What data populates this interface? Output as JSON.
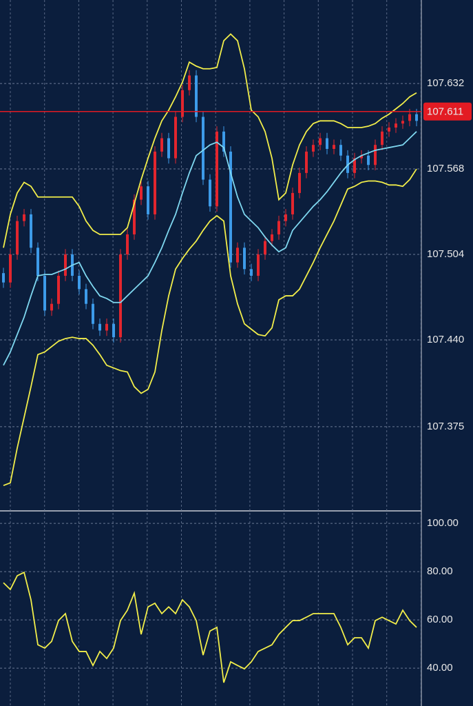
{
  "chart_data": [
    {
      "type": "candlestick",
      "open": [
        107.49,
        107.483,
        107.504,
        107.529,
        107.534,
        107.509,
        107.488,
        107.462,
        107.467,
        107.488,
        107.504,
        107.488,
        107.478,
        107.467,
        107.452,
        107.447,
        107.452,
        107.442,
        107.504,
        107.519,
        107.545,
        107.555,
        107.534,
        107.581,
        107.591,
        107.576,
        107.607,
        107.627,
        107.638,
        107.607,
        107.56,
        107.54,
        107.596,
        107.581,
        107.498,
        107.509,
        107.493,
        107.488,
        107.504,
        107.514,
        107.519,
        107.529,
        107.534,
        107.55,
        107.565,
        107.581,
        107.586,
        107.591,
        107.583,
        107.586,
        107.578,
        107.565,
        107.576,
        107.578,
        107.571,
        107.586,
        107.596,
        107.599,
        107.602,
        107.604,
        107.609
      ],
      "high": [
        107.494,
        107.508,
        107.533,
        107.538,
        107.538,
        107.513,
        107.492,
        107.471,
        107.492,
        107.508,
        107.508,
        107.492,
        107.482,
        107.471,
        107.456,
        107.456,
        107.456,
        107.508,
        107.523,
        107.549,
        107.559,
        107.559,
        107.585,
        107.595,
        107.595,
        107.611,
        107.631,
        107.642,
        107.642,
        107.611,
        107.564,
        107.6,
        107.6,
        107.585,
        107.513,
        107.513,
        107.497,
        107.508,
        107.518,
        107.523,
        107.533,
        107.538,
        107.554,
        107.569,
        107.585,
        107.59,
        107.595,
        107.595,
        107.59,
        107.59,
        107.582,
        107.58,
        107.582,
        107.582,
        107.59,
        107.6,
        107.603,
        107.606,
        107.608,
        107.613,
        107.613
      ],
      "low": [
        107.479,
        107.479,
        107.5,
        107.525,
        107.505,
        107.484,
        107.458,
        107.458,
        107.463,
        107.484,
        107.484,
        107.474,
        107.463,
        107.448,
        107.443,
        107.443,
        107.438,
        107.438,
        107.5,
        107.515,
        107.541,
        107.53,
        107.53,
        107.577,
        107.572,
        107.572,
        107.603,
        107.623,
        107.603,
        107.556,
        107.536,
        107.536,
        107.577,
        107.494,
        107.494,
        107.489,
        107.484,
        107.484,
        107.5,
        107.51,
        107.515,
        107.525,
        107.53,
        107.546,
        107.561,
        107.577,
        107.582,
        107.579,
        107.579,
        107.574,
        107.561,
        107.561,
        107.572,
        107.567,
        107.567,
        107.582,
        107.592,
        107.595,
        107.598,
        107.6,
        107.6
      ],
      "close": [
        107.483,
        107.504,
        107.529,
        107.534,
        107.509,
        107.488,
        107.462,
        107.467,
        107.488,
        107.504,
        107.488,
        107.478,
        107.467,
        107.452,
        107.447,
        107.452,
        107.442,
        107.504,
        107.519,
        107.545,
        107.555,
        107.534,
        107.581,
        107.591,
        107.576,
        107.607,
        107.627,
        107.638,
        107.607,
        107.56,
        107.54,
        107.596,
        107.581,
        107.498,
        107.509,
        107.493,
        107.488,
        107.504,
        107.514,
        107.519,
        107.529,
        107.534,
        107.55,
        107.565,
        107.581,
        107.586,
        107.591,
        107.583,
        107.586,
        107.578,
        107.565,
        107.576,
        107.578,
        107.571,
        107.586,
        107.596,
        107.599,
        107.602,
        107.604,
        107.609,
        107.604
      ],
      "up_color": "#e3262e",
      "down_color": "#3d9be9",
      "series": [
        {
          "color": "#f2ee4a",
          "values": [
            107.509,
            107.534,
            107.55,
            107.558,
            107.555,
            107.547,
            107.547,
            107.547,
            107.547,
            107.547,
            107.547,
            107.54,
            107.529,
            107.522,
            107.519,
            107.519,
            107.519,
            107.519,
            107.524,
            107.542,
            107.56,
            107.576,
            107.591,
            107.604,
            107.612,
            107.622,
            107.633,
            107.648,
            107.645,
            107.643,
            107.643,
            107.644,
            107.664,
            107.669,
            107.664,
            107.643,
            107.612,
            107.607,
            107.596,
            107.576,
            107.545,
            107.55,
            107.571,
            107.586,
            107.596,
            107.602,
            107.604,
            107.604,
            107.604,
            107.602,
            107.599,
            107.599,
            107.599,
            107.6,
            107.602,
            107.606,
            107.609,
            107.613,
            107.617,
            107.622,
            107.625
          ]
        },
        {
          "color": "#7fd8f0",
          "values": [
            107.421,
            107.431,
            107.444,
            107.457,
            107.473,
            107.488,
            107.489,
            107.489,
            107.491,
            107.493,
            107.496,
            107.498,
            107.488,
            107.48,
            107.473,
            107.471,
            107.468,
            107.468,
            107.473,
            107.478,
            107.483,
            107.488,
            107.498,
            107.509,
            107.522,
            107.534,
            107.55,
            107.565,
            107.578,
            107.582,
            107.586,
            107.588,
            107.584,
            107.565,
            107.547,
            107.534,
            107.529,
            107.524,
            107.517,
            107.511,
            107.506,
            107.509,
            107.522,
            107.528,
            107.534,
            107.54,
            107.545,
            107.551,
            107.558,
            107.565,
            107.571,
            107.575,
            107.578,
            107.58,
            107.582,
            107.583,
            107.584,
            107.585,
            107.586,
            107.591,
            107.596
          ]
        },
        {
          "color": "#f2ee4a",
          "values": [
            107.331,
            107.333,
            107.359,
            107.382,
            107.405,
            107.429,
            107.431,
            107.435,
            107.439,
            107.441,
            107.442,
            107.441,
            107.441,
            107.436,
            107.429,
            107.421,
            107.419,
            107.417,
            107.416,
            107.405,
            107.4,
            107.403,
            107.416,
            107.447,
            107.473,
            107.493,
            107.501,
            107.508,
            107.514,
            107.522,
            107.529,
            107.533,
            107.529,
            107.488,
            107.467,
            107.452,
            107.448,
            107.444,
            107.443,
            107.449,
            107.47,
            107.473,
            107.473,
            107.478,
            107.488,
            107.498,
            107.509,
            107.519,
            107.529,
            107.541,
            107.553,
            107.555,
            107.558,
            107.559,
            107.559,
            107.558,
            107.556,
            107.556,
            107.555,
            107.56,
            107.568
          ]
        }
      ],
      "current_price": 107.611,
      "current_color": "#e31b23",
      "ylim": [
        107.3125,
        107.6945
      ],
      "yticks": [
        107.632,
        107.568,
        107.504,
        {
          "value": 107.44,
          "label": "107.440"
        },
        107.375
      ],
      "grid": true
    },
    {
      "type": "line",
      "series": [
        {
          "color": "#f2ee4a",
          "values": [
            75.4,
            72.6,
            78.3,
            79.7,
            68.3,
            49.7,
            48.3,
            51.1,
            59.7,
            62.6,
            51.1,
            46.9,
            46.9,
            41.1,
            46.9,
            44.0,
            48.3,
            59.7,
            64.0,
            71.1,
            54.0,
            65.4,
            66.9,
            62.6,
            65.4,
            62.6,
            68.3,
            65.4,
            59.7,
            45.4,
            55.4,
            56.9,
            34.0,
            42.6,
            41.1,
            39.7,
            42.6,
            46.9,
            48.3,
            49.7,
            54.0,
            56.9,
            59.7,
            59.7,
            61.1,
            62.6,
            62.6,
            62.6,
            62.6,
            56.9,
            49.7,
            52.6,
            52.6,
            48.3,
            59.7,
            61.1,
            59.7,
            58.3,
            64.0,
            59.7,
            56.9
          ]
        }
      ],
      "ylim": [
        24.3,
        104.9
      ],
      "yticks": [
        {
          "value": 100,
          "label": "100.00"
        },
        {
          "value": 80,
          "label": "80.00"
        },
        {
          "value": 60,
          "label": "60.00"
        },
        {
          "value": 40,
          "label": "40.00"
        }
      ],
      "grid": true
    }
  ]
}
